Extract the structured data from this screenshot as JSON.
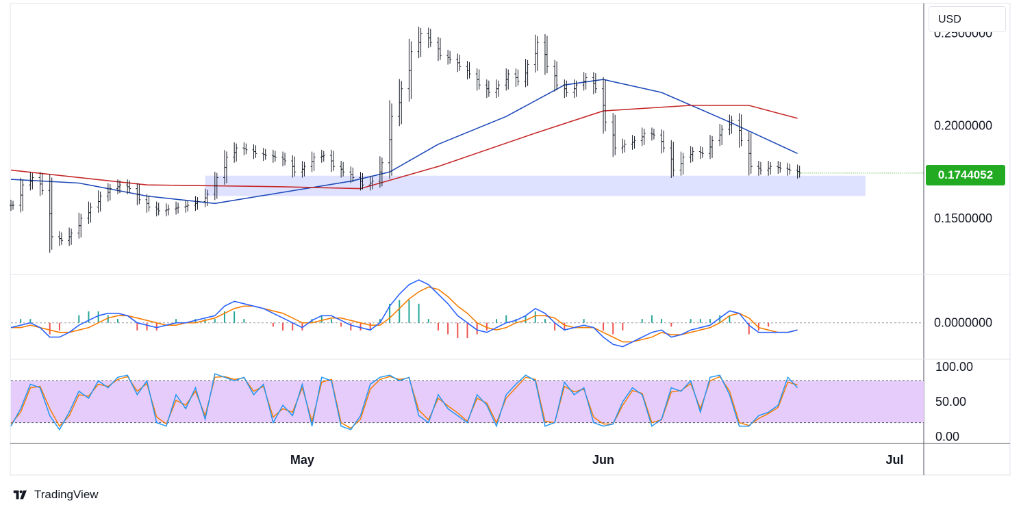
{
  "currency": "USD",
  "current_price_label": "0.1744052",
  "brand": {
    "name": "TradingView",
    "logo_icon": "tradingview-logo-icon"
  },
  "colors": {
    "bar": "#131722",
    "ma_fast": "#1e4ab8",
    "ma_slow": "#c62828",
    "support_zone": "#d8ddff",
    "current_price": "#22ab22",
    "macd_line": "#2962ff",
    "signal_line": "#f57c00",
    "hist_pos": "#26a69a",
    "hist_neg": "#ef5350",
    "stoch_band": "#e6ccfb",
    "stoch_k": "#2196f3",
    "stoch_d": "#f57c00"
  },
  "chart_data": [
    {
      "type": "line",
      "panel": "price",
      "style": "ohlc-bars",
      "x_range": [
        "2024-04-01",
        "2024-07-04"
      ],
      "ylim": [
        0.12,
        0.265
      ],
      "y_ticks": [
        "0.2500000",
        "0.2000000",
        "0.1500000"
      ],
      "x_tick_labels": [
        "May",
        "Jun",
        "Jul"
      ],
      "x_tick_dates": [
        "2024-05-01",
        "2024-06-01",
        "2024-07-01"
      ],
      "series": [
        {
          "kind": "price-close",
          "points": [
            [
              "2024-04-01",
              0.157
            ],
            [
              "2024-04-02",
              0.168
            ],
            [
              "2024-04-03",
              0.172
            ],
            [
              "2024-04-04",
              0.165
            ],
            [
              "2024-04-05",
              0.14
            ],
            [
              "2024-04-06",
              0.138
            ],
            [
              "2024-04-07",
              0.142
            ],
            [
              "2024-04-08",
              0.15
            ],
            [
              "2024-04-09",
              0.156
            ],
            [
              "2024-04-10",
              0.162
            ],
            [
              "2024-04-11",
              0.166
            ],
            [
              "2024-04-12",
              0.168
            ],
            [
              "2024-04-13",
              0.166
            ],
            [
              "2024-04-14",
              0.16
            ],
            [
              "2024-04-15",
              0.156
            ],
            [
              "2024-04-16",
              0.154
            ],
            [
              "2024-04-17",
              0.155
            ],
            [
              "2024-04-18",
              0.156
            ],
            [
              "2024-04-19",
              0.157
            ],
            [
              "2024-04-20",
              0.159
            ],
            [
              "2024-04-21",
              0.163
            ],
            [
              "2024-04-22",
              0.172
            ],
            [
              "2024-04-23",
              0.183
            ],
            [
              "2024-04-24",
              0.188
            ],
            [
              "2024-04-25",
              0.187
            ],
            [
              "2024-04-26",
              0.185
            ],
            [
              "2024-04-27",
              0.184
            ],
            [
              "2024-04-28",
              0.183
            ],
            [
              "2024-04-29",
              0.181
            ],
            [
              "2024-04-30",
              0.175
            ],
            [
              "2024-05-01",
              0.178
            ],
            [
              "2024-05-02",
              0.183
            ],
            [
              "2024-05-03",
              0.184
            ],
            [
              "2024-05-04",
              0.178
            ],
            [
              "2024-05-05",
              0.175
            ],
            [
              "2024-05-06",
              0.172
            ],
            [
              "2024-05-07",
              0.168
            ],
            [
              "2024-05-08",
              0.17
            ],
            [
              "2024-05-09",
              0.18
            ],
            [
              "2024-05-10",
              0.205
            ],
            [
              "2024-05-11",
              0.22
            ],
            [
              "2024-05-12",
              0.24
            ],
            [
              "2024-05-13",
              0.25
            ],
            [
              "2024-05-14",
              0.245
            ],
            [
              "2024-05-15",
              0.238
            ],
            [
              "2024-05-16",
              0.236
            ],
            [
              "2024-05-17",
              0.232
            ],
            [
              "2024-05-18",
              0.228
            ],
            [
              "2024-05-19",
              0.222
            ],
            [
              "2024-05-20",
              0.218
            ],
            [
              "2024-05-21",
              0.222
            ],
            [
              "2024-05-22",
              0.228
            ],
            [
              "2024-05-23",
              0.224
            ],
            [
              "2024-05-24",
              0.233
            ],
            [
              "2024-05-25",
              0.245
            ],
            [
              "2024-05-26",
              0.232
            ],
            [
              "2024-05-27",
              0.222
            ],
            [
              "2024-05-28",
              0.218
            ],
            [
              "2024-05-29",
              0.222
            ],
            [
              "2024-05-30",
              0.226
            ],
            [
              "2024-05-31",
              0.22
            ],
            [
              "2024-06-01",
              0.202
            ],
            [
              "2024-06-02",
              0.188
            ],
            [
              "2024-06-03",
              0.19
            ],
            [
              "2024-06-04",
              0.192
            ],
            [
              "2024-06-05",
              0.196
            ],
            [
              "2024-06-06",
              0.195
            ],
            [
              "2024-06-07",
              0.188
            ],
            [
              "2024-06-08",
              0.176
            ],
            [
              "2024-06-09",
              0.183
            ],
            [
              "2024-06-10",
              0.186
            ],
            [
              "2024-06-11",
              0.185
            ],
            [
              "2024-06-12",
              0.192
            ],
            [
              "2024-06-13",
              0.198
            ],
            [
              "2024-06-14",
              0.203
            ],
            [
              "2024-06-15",
              0.192
            ],
            [
              "2024-06-16",
              0.178
            ],
            [
              "2024-06-17",
              0.176
            ],
            [
              "2024-06-18",
              0.178
            ],
            [
              "2024-06-19",
              0.177
            ],
            [
              "2024-06-20",
              0.176
            ],
            [
              "2024-06-21",
              0.1744052
            ]
          ]
        },
        {
          "kind": "moving-average",
          "color": "#1e4ab8",
          "points": [
            [
              "2024-04-01",
              0.171
            ],
            [
              "2024-04-08",
              0.169
            ],
            [
              "2024-04-15",
              0.162
            ],
            [
              "2024-04-22",
              0.158
            ],
            [
              "2024-04-29",
              0.164
            ],
            [
              "2024-05-06",
              0.17
            ],
            [
              "2024-05-10",
              0.175
            ],
            [
              "2024-05-15",
              0.19
            ],
            [
              "2024-05-22",
              0.205
            ],
            [
              "2024-05-28",
              0.222
            ],
            [
              "2024-06-01",
              0.225
            ],
            [
              "2024-06-07",
              0.218
            ],
            [
              "2024-06-14",
              0.202
            ],
            [
              "2024-06-21",
              0.185
            ]
          ]
        },
        {
          "kind": "moving-average",
          "color": "#c62828",
          "points": [
            [
              "2024-04-01",
              0.176
            ],
            [
              "2024-04-15",
              0.168
            ],
            [
              "2024-04-29",
              0.167
            ],
            [
              "2024-05-07",
              0.166
            ],
            [
              "2024-05-15",
              0.178
            ],
            [
              "2024-05-25",
              0.196
            ],
            [
              "2024-06-01",
              0.208
            ],
            [
              "2024-06-10",
              0.211
            ],
            [
              "2024-06-16",
              0.211
            ],
            [
              "2024-06-21",
              0.204
            ]
          ]
        }
      ],
      "support_zone": {
        "from_date": "2024-04-21",
        "to_date": "2024-06-28",
        "y_low": 0.162,
        "y_high": 0.173
      }
    },
    {
      "type": "line",
      "panel": "macd",
      "y_ticks": [
        "0.0000000"
      ],
      "ylim": [
        -0.015,
        0.02
      ],
      "series": [
        {
          "kind": "macd",
          "values": [
            -0.002,
            -0.001,
            0.0,
            -0.002,
            -0.006,
            -0.006,
            -0.004,
            -0.001,
            0.001,
            0.003,
            0.004,
            0.004,
            0.003,
            0.0,
            -0.001,
            -0.002,
            -0.001,
            0.0,
            0.0,
            0.001,
            0.002,
            0.003,
            0.007,
            0.009,
            0.008,
            0.007,
            0.006,
            0.004,
            0.002,
            0.0,
            -0.002,
            0.001,
            0.003,
            0.003,
            0.001,
            -0.001,
            -0.002,
            -0.003,
            0.0,
            0.007,
            0.012,
            0.016,
            0.018,
            0.016,
            0.012,
            0.008,
            0.003,
            0.0,
            -0.003,
            -0.004,
            -0.002,
            0.0,
            0.001,
            0.003,
            0.006,
            0.004,
            0.0,
            -0.003,
            -0.002,
            -0.001,
            -0.002,
            -0.006,
            -0.009,
            -0.01,
            -0.008,
            -0.006,
            -0.004,
            -0.003,
            -0.006,
            -0.005,
            -0.003,
            -0.002,
            -0.001,
            0.002,
            0.005,
            0.004,
            -0.001,
            -0.004,
            -0.004,
            -0.004,
            -0.004,
            -0.003
          ]
        },
        {
          "kind": "signal",
          "values": [
            -0.002,
            -0.002,
            -0.001,
            -0.002,
            -0.003,
            -0.004,
            -0.004,
            -0.003,
            -0.002,
            0.0,
            0.002,
            0.003,
            0.003,
            0.002,
            0.001,
            0.0,
            -0.001,
            -0.001,
            0.0,
            0.0,
            0.001,
            0.002,
            0.004,
            0.006,
            0.007,
            0.007,
            0.006,
            0.005,
            0.004,
            0.002,
            0.0,
            0.0,
            0.001,
            0.002,
            0.002,
            0.001,
            0.0,
            -0.001,
            -0.001,
            0.002,
            0.006,
            0.01,
            0.013,
            0.015,
            0.014,
            0.011,
            0.007,
            0.004,
            0.0,
            -0.002,
            -0.003,
            -0.002,
            0.0,
            0.001,
            0.003,
            0.003,
            0.002,
            -0.001,
            -0.002,
            -0.002,
            -0.002,
            -0.004,
            -0.006,
            -0.008,
            -0.008,
            -0.007,
            -0.006,
            -0.004,
            -0.005,
            -0.005,
            -0.004,
            -0.003,
            -0.002,
            0.0,
            0.003,
            0.004,
            0.002,
            -0.002,
            -0.003,
            -0.004,
            -0.004,
            -0.003
          ]
        }
      ]
    },
    {
      "type": "line",
      "panel": "stochastic",
      "ylim": [
        0,
        100
      ],
      "y_ticks": [
        "100.00",
        "50.00",
        "0.00"
      ],
      "band": [
        20,
        80
      ],
      "series": [
        {
          "kind": "%K",
          "values": [
            15,
            40,
            75,
            70,
            30,
            10,
            35,
            65,
            55,
            80,
            70,
            85,
            88,
            60,
            80,
            20,
            15,
            60,
            40,
            70,
            25,
            90,
            85,
            80,
            85,
            60,
            75,
            20,
            45,
            30,
            75,
            15,
            85,
            80,
            15,
            10,
            30,
            75,
            85,
            88,
            80,
            85,
            30,
            20,
            60,
            40,
            30,
            20,
            60,
            45,
            15,
            60,
            75,
            88,
            80,
            15,
            20,
            78,
            60,
            70,
            20,
            15,
            18,
            50,
            70,
            60,
            15,
            25,
            70,
            65,
            80,
            35,
            85,
            88,
            60,
            15,
            15,
            30,
            35,
            45,
            85,
            70
          ]
        },
        {
          "kind": "%D",
          "values": [
            18,
            35,
            70,
            72,
            40,
            15,
            30,
            60,
            58,
            75,
            72,
            82,
            86,
            65,
            76,
            28,
            18,
            52,
            45,
            65,
            30,
            85,
            86,
            82,
            84,
            65,
            72,
            28,
            40,
            35,
            70,
            22,
            78,
            82,
            20,
            12,
            25,
            68,
            82,
            86,
            82,
            84,
            38,
            24,
            55,
            44,
            34,
            22,
            55,
            48,
            20,
            55,
            70,
            85,
            82,
            22,
            20,
            72,
            64,
            68,
            28,
            18,
            18,
            45,
            66,
            62,
            20,
            24,
            64,
            66,
            76,
            40,
            80,
            86,
            65,
            20,
            16,
            26,
            33,
            42,
            78,
            74
          ]
        }
      ]
    }
  ]
}
